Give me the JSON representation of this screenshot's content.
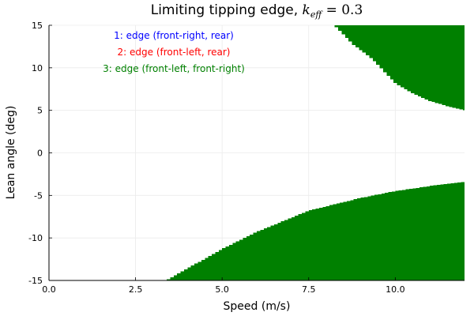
{
  "chart_data": {
    "type": "heatmap",
    "title": "Limiting tipping edge, ",
    "title_math": "k",
    "title_math_sub": "eff",
    "title_math_rest": " = 0.3",
    "xlabel": "Speed (m/s)",
    "ylabel": "Lean angle (deg)",
    "xlim": [
      0,
      12
    ],
    "ylim": [
      -15,
      15
    ],
    "xticks": [
      0,
      2.5,
      5,
      7.5,
      10
    ],
    "xtick_labels": [
      "0.0",
      "2.5",
      "5.0",
      "7.5",
      "10.0"
    ],
    "yticks": [
      -15,
      -10,
      -5,
      0,
      5,
      10,
      15
    ],
    "ytick_labels": [
      "-15",
      "-10",
      "-5",
      "0",
      "5",
      "10",
      "15"
    ],
    "grid": true,
    "annotations": [
      {
        "text": "1: edge (front-right, rear)",
        "color": "#0000ff"
      },
      {
        "text": "2: edge (front-left, rear)",
        "color": "#ff0000"
      },
      {
        "text": "3: edge (front-left, front-right)",
        "color": "#008000"
      }
    ],
    "regions": [
      {
        "edge": 3,
        "color": "#008000",
        "name": "upper-region-edge-3",
        "boundary": [
          [
            8.25,
            15
          ],
          [
            8.8,
            12.7
          ],
          [
            9.35,
            11
          ],
          [
            10,
            8.2
          ],
          [
            10.5,
            7.0
          ],
          [
            11,
            6.1
          ],
          [
            11.5,
            5.5
          ],
          [
            12,
            5.0
          ]
        ],
        "side": "above"
      },
      {
        "edge": 3,
        "color": "#008000",
        "name": "lower-region-edge-3",
        "boundary": [
          [
            3.4,
            -15
          ],
          [
            4,
            -13.6
          ],
          [
            5,
            -11.3
          ],
          [
            6,
            -9.3
          ],
          [
            7.5,
            -6.8
          ],
          [
            9,
            -5.3
          ],
          [
            10,
            -4.5
          ],
          [
            11,
            -3.9
          ],
          [
            12,
            -3.4
          ]
        ],
        "side": "below"
      }
    ]
  }
}
